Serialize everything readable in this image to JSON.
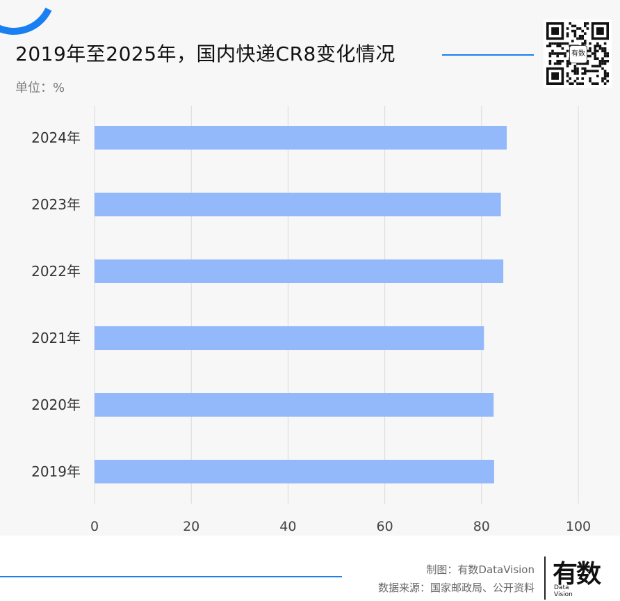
{
  "header": {
    "title": "2019年至2025年，国内快递CR8变化情况",
    "unit": "单位：%"
  },
  "qr": {
    "center_label": "有数"
  },
  "footer": {
    "maker": "制图：有数DataVision",
    "source": "数据来源：国家邮政局、公开资料",
    "logo_cn": "有数",
    "logo_en_1": "Data",
    "logo_en_2": "Vision"
  },
  "colors": {
    "bar": "#94b9fb",
    "accent": "#1a7ff0",
    "grid": "#d9d9d9"
  },
  "chart_data": {
    "type": "bar",
    "orientation": "horizontal",
    "categories": [
      "2024年",
      "2023年",
      "2022年",
      "2021年",
      "2020年",
      "2019年"
    ],
    "values": [
      85.2,
      84.0,
      84.5,
      80.5,
      82.5,
      82.6
    ],
    "xlim": [
      0,
      100
    ],
    "xticks": [
      "0",
      "20",
      "40",
      "60",
      "80",
      "100"
    ],
    "grid": "vertical"
  }
}
